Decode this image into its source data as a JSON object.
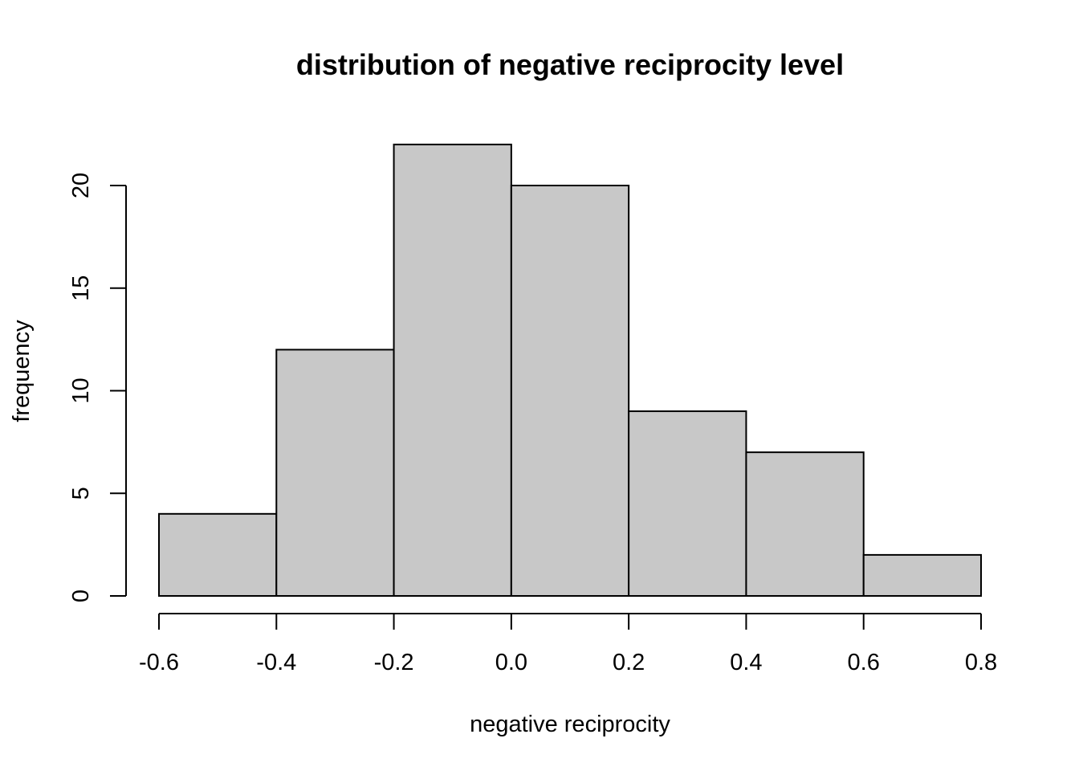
{
  "chart_data": {
    "type": "bar",
    "title": "distribution of negative reciprocity level",
    "xlabel": "negative reciprocity",
    "ylabel": "frequency",
    "bins": [
      {
        "from": -0.6,
        "to": -0.4,
        "count": 4
      },
      {
        "from": -0.4,
        "to": -0.2,
        "count": 12
      },
      {
        "from": -0.2,
        "to": 0.0,
        "count": 22
      },
      {
        "from": 0.0,
        "to": 0.2,
        "count": 20
      },
      {
        "from": 0.2,
        "to": 0.4,
        "count": 9
      },
      {
        "from": 0.4,
        "to": 0.6,
        "count": 7
      },
      {
        "from": 0.6,
        "to": 0.8,
        "count": 2
      }
    ],
    "xlim": [
      -0.6,
      0.8
    ],
    "ylim": [
      0,
      20
    ],
    "x_ticks": [
      "-0.6",
      "-0.4",
      "-0.2",
      "0.0",
      "0.2",
      "0.4",
      "0.6",
      "0.8"
    ],
    "y_ticks": [
      "0",
      "5",
      "10",
      "15",
      "20"
    ],
    "bar_fill": "#c8c8c8",
    "bar_stroke": "#000000",
    "grid": false,
    "legend": "none"
  }
}
